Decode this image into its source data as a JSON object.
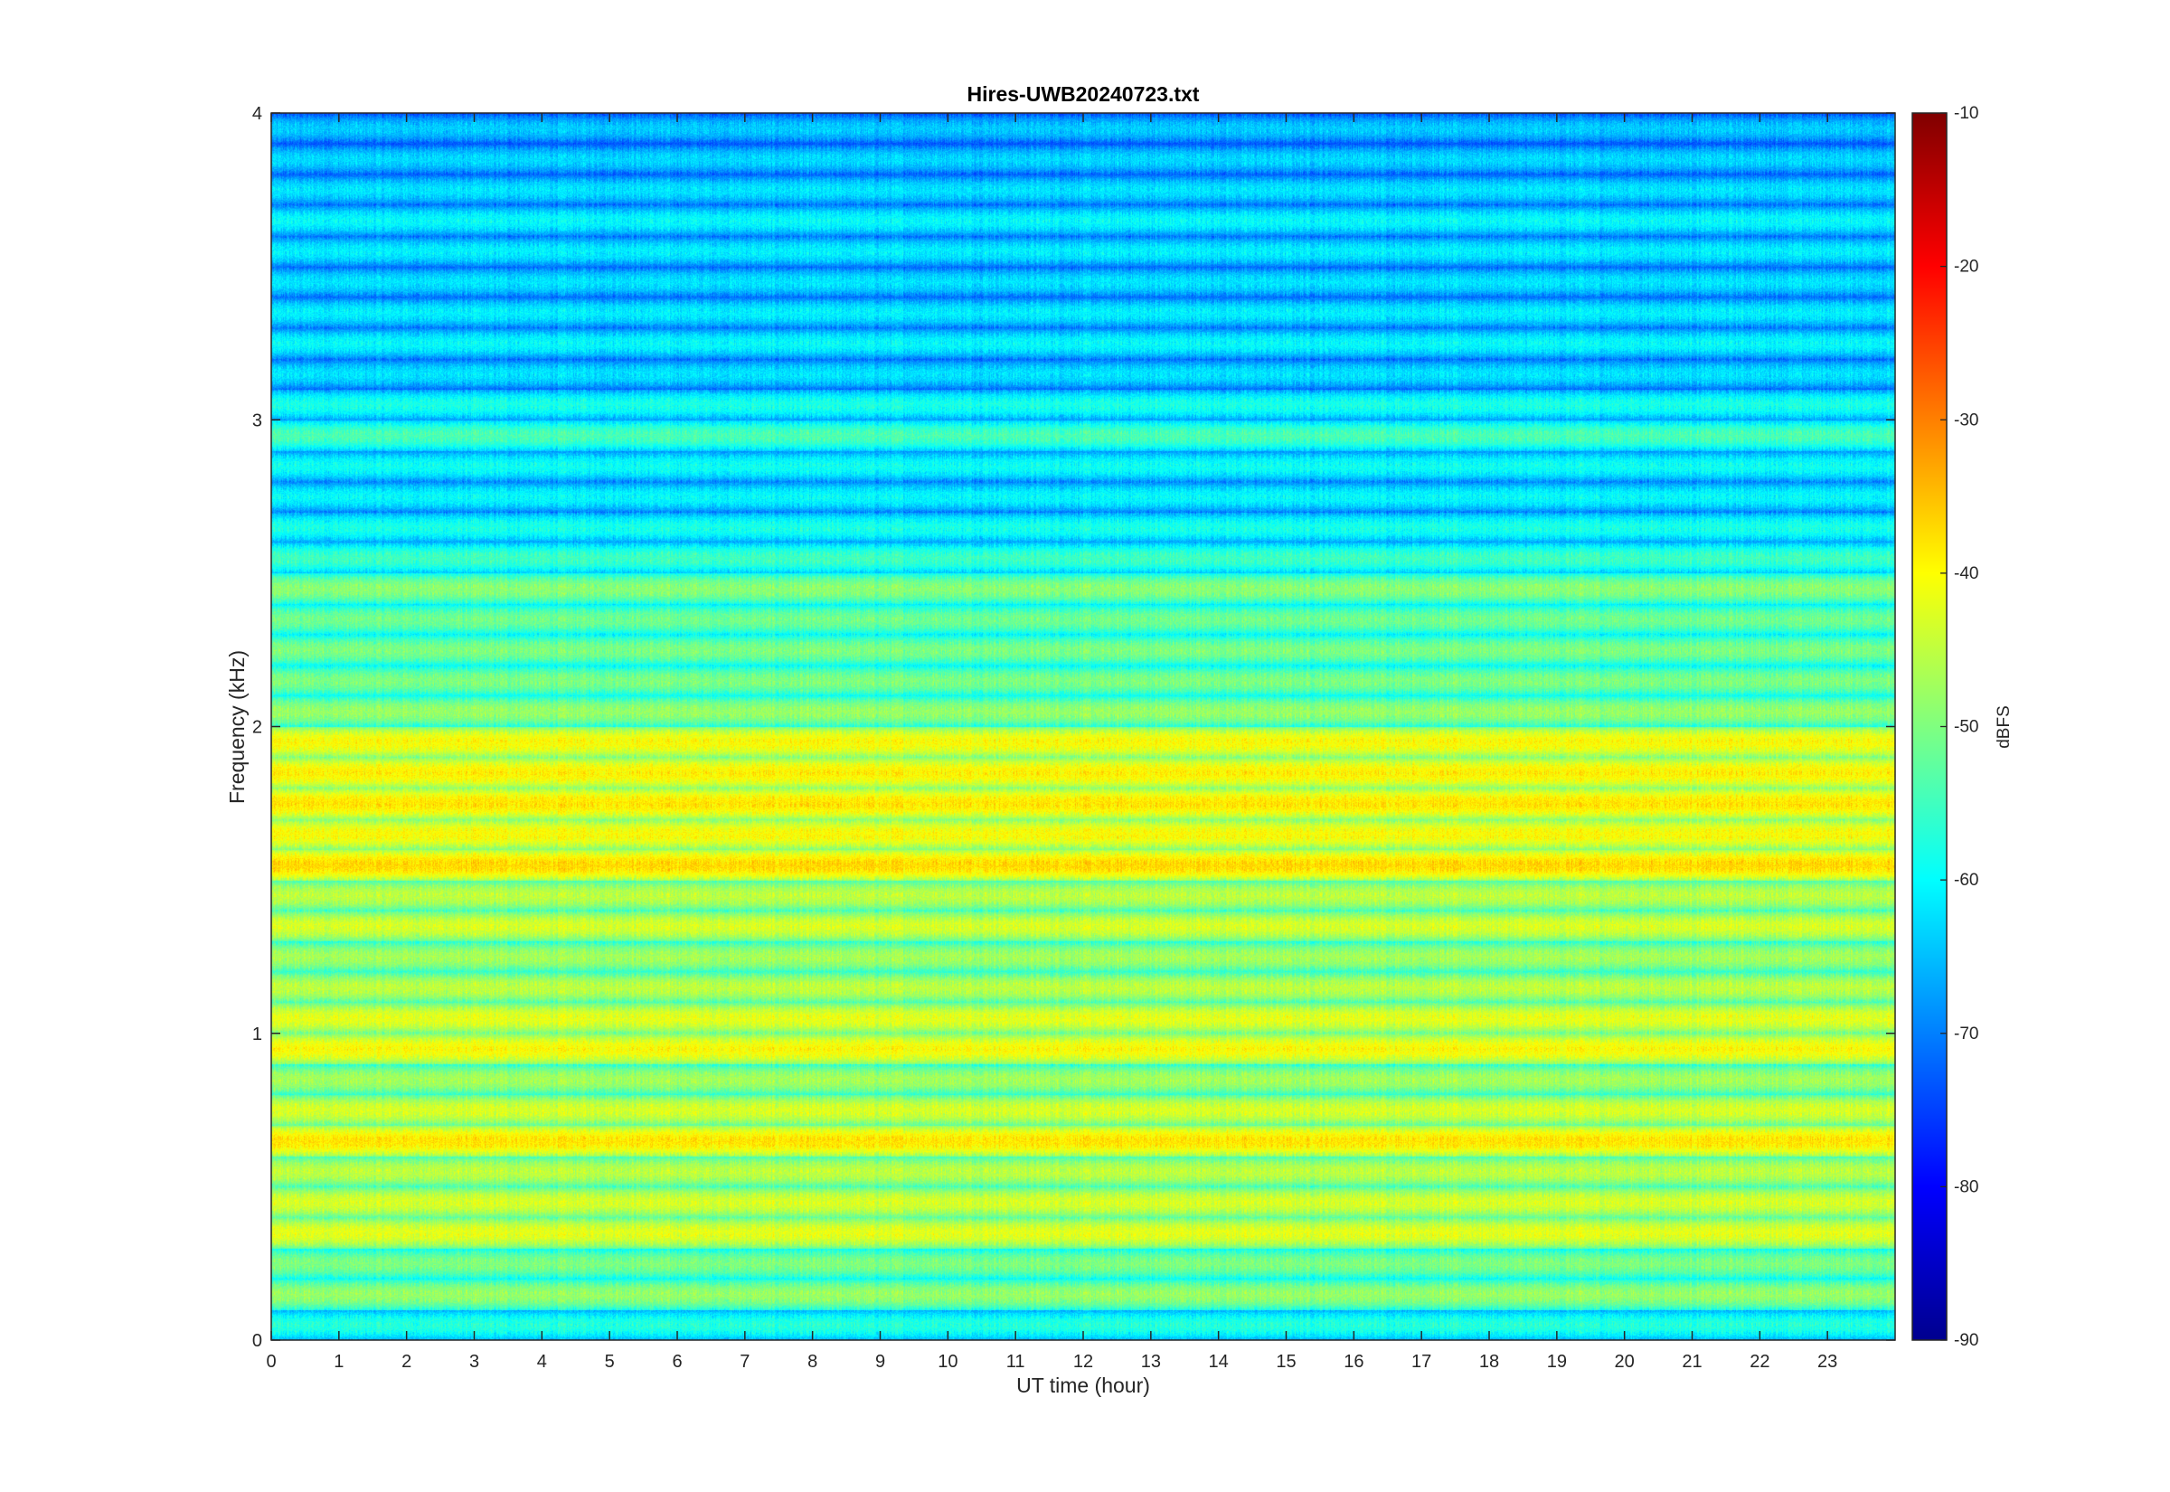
{
  "chart_data": {
    "type": "heatmap",
    "title": "Hires-UWB20240723.txt",
    "xlabel": "UT time (hour)",
    "ylabel": "Frequency (kHz)",
    "colorbar_label": "dBFS",
    "xlim": [
      0,
      24
    ],
    "ylim": [
      0,
      4
    ],
    "clim": [
      -90,
      -10
    ],
    "colormap": "jet",
    "xticks": [
      0,
      1,
      2,
      3,
      4,
      5,
      6,
      7,
      8,
      9,
      10,
      11,
      12,
      13,
      14,
      15,
      16,
      17,
      18,
      19,
      20,
      21,
      22,
      23
    ],
    "yticks": [
      0,
      1,
      2,
      3,
      4
    ],
    "cticks": [
      -90,
      -80,
      -70,
      -60,
      -50,
      -40,
      -30,
      -20,
      -10
    ],
    "band_spacing_khz": 0.1,
    "bands": [
      {
        "f": 0.05,
        "level": -57
      },
      {
        "f": 0.15,
        "level": -48
      },
      {
        "f": 0.25,
        "level": -50
      },
      {
        "f": 0.35,
        "level": -42
      },
      {
        "f": 0.45,
        "level": -43
      },
      {
        "f": 0.55,
        "level": -45
      },
      {
        "f": 0.65,
        "level": -38
      },
      {
        "f": 0.75,
        "level": -43
      },
      {
        "f": 0.85,
        "level": -47
      },
      {
        "f": 0.95,
        "level": -40
      },
      {
        "f": 1.05,
        "level": -42
      },
      {
        "f": 1.15,
        "level": -45
      },
      {
        "f": 1.25,
        "level": -47
      },
      {
        "f": 1.35,
        "level": -43
      },
      {
        "f": 1.45,
        "level": -45
      },
      {
        "f": 1.55,
        "level": -37
      },
      {
        "f": 1.65,
        "level": -40
      },
      {
        "f": 1.75,
        "level": -38
      },
      {
        "f": 1.85,
        "level": -39
      },
      {
        "f": 1.95,
        "level": -40
      },
      {
        "f": 2.05,
        "level": -48
      },
      {
        "f": 2.15,
        "level": -50
      },
      {
        "f": 2.25,
        "level": -50
      },
      {
        "f": 2.35,
        "level": -51
      },
      {
        "f": 2.45,
        "level": -49
      },
      {
        "f": 2.55,
        "level": -55
      },
      {
        "f": 2.65,
        "level": -58
      },
      {
        "f": 2.75,
        "level": -60
      },
      {
        "f": 2.85,
        "level": -59
      },
      {
        "f": 2.95,
        "level": -54
      },
      {
        "f": 3.05,
        "level": -58
      },
      {
        "f": 3.15,
        "level": -62
      },
      {
        "f": 3.25,
        "level": -60
      },
      {
        "f": 3.35,
        "level": -61
      },
      {
        "f": 3.45,
        "level": -62
      },
      {
        "f": 3.55,
        "level": -61
      },
      {
        "f": 3.65,
        "level": -60
      },
      {
        "f": 3.75,
        "level": -62
      },
      {
        "f": 3.85,
        "level": -63
      },
      {
        "f": 3.95,
        "level": -64
      }
    ]
  }
}
